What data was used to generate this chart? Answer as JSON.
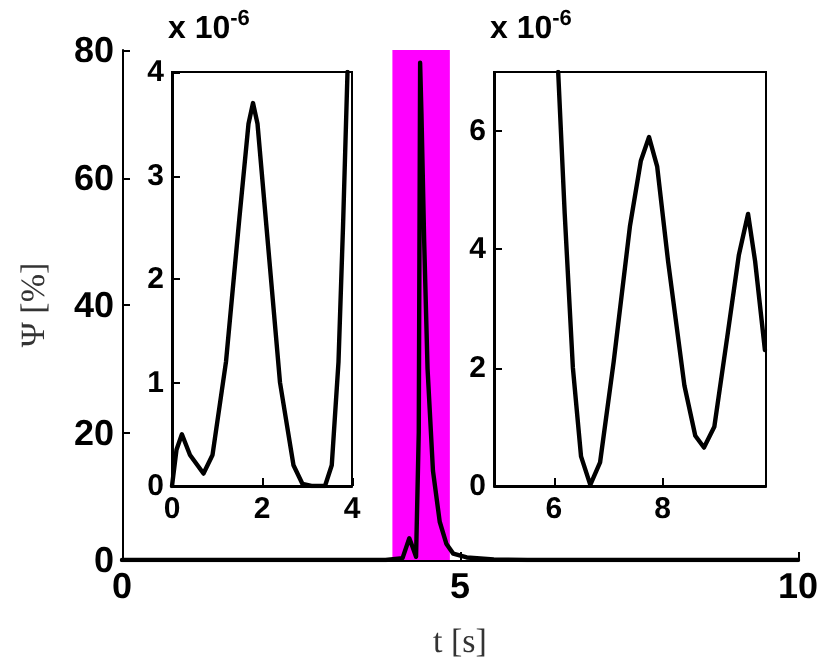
{
  "chart_data": [
    {
      "type": "line",
      "xlabel": "t [s]",
      "ylabel": "Ψ [%]",
      "xlim": [
        0,
        10
      ],
      "ylim": [
        0,
        80
      ],
      "xticks": [
        0,
        5,
        10
      ],
      "yticks": [
        0,
        20,
        40,
        60,
        80
      ],
      "grid": false,
      "marker": "none",
      "x": [
        0,
        3.9,
        4.15,
        4.25,
        4.3,
        4.35,
        4.39,
        4.41,
        4.43,
        4.47,
        4.52,
        4.6,
        4.7,
        4.8,
        4.9,
        5.1,
        5.5,
        6,
        10
      ],
      "series": [
        {
          "color": "#000000",
          "values": [
            0,
            0,
            0.3,
            3.4,
            2,
            0.5,
            20,
            78,
            70,
            50,
            30,
            14,
            6,
            2.5,
            1,
            0.4,
            0.1,
            0,
            0
          ]
        }
      ],
      "bands": [
        {
          "axis": "x",
          "from": 4.0,
          "to": 4.85,
          "color": "#ff00ff"
        }
      ]
    },
    {
      "type": "line",
      "xlim": [
        0,
        4
      ],
      "ylim": [
        0,
        4
      ],
      "xticks": [
        0,
        2,
        4
      ],
      "yticks": [
        0,
        1,
        2,
        3,
        4
      ],
      "grid": false,
      "marker": "none",
      "annotations": [
        "x 10$^{-6}$"
      ],
      "x": [
        0,
        0.1,
        0.22,
        0.4,
        0.7,
        0.9,
        1.2,
        1.5,
        1.7,
        1.8,
        1.9,
        2.1,
        2.4,
        2.7,
        2.9,
        3.1,
        3.4,
        3.55,
        3.7,
        3.8,
        3.9
      ],
      "series": [
        {
          "color": "#000000",
          "values": [
            0,
            0.35,
            0.5,
            0.3,
            0.12,
            0.3,
            1.2,
            2.6,
            3.5,
            3.7,
            3.5,
            2.5,
            1.0,
            0.2,
            0.02,
            0,
            0,
            0.2,
            1.2,
            2.5,
            4
          ]
        }
      ]
    },
    {
      "type": "line",
      "xlim": [
        4.9,
        9.9
      ],
      "ylim": [
        0,
        7
      ],
      "xticks": [
        6,
        8
      ],
      "yticks": [
        0,
        2,
        4,
        6
      ],
      "grid": false,
      "marker": "none",
      "annotations": [
        "x 10$^{-6}$"
      ],
      "x": [
        6.08,
        6.2,
        6.35,
        6.5,
        6.67,
        6.85,
        7.1,
        7.4,
        7.6,
        7.75,
        7.9,
        8.1,
        8.4,
        8.6,
        8.76,
        8.95,
        9.2,
        9.4,
        9.57,
        9.7,
        9.88
      ],
      "series": [
        {
          "color": "#000000",
          "values": [
            7,
            4.6,
            2,
            0.5,
            0.02,
            0.4,
            2.1,
            4.4,
            5.5,
            5.9,
            5.4,
            3.8,
            1.7,
            0.85,
            0.65,
            1.0,
            2.6,
            3.9,
            4.6,
            3.8,
            2.3
          ]
        }
      ]
    }
  ]
}
